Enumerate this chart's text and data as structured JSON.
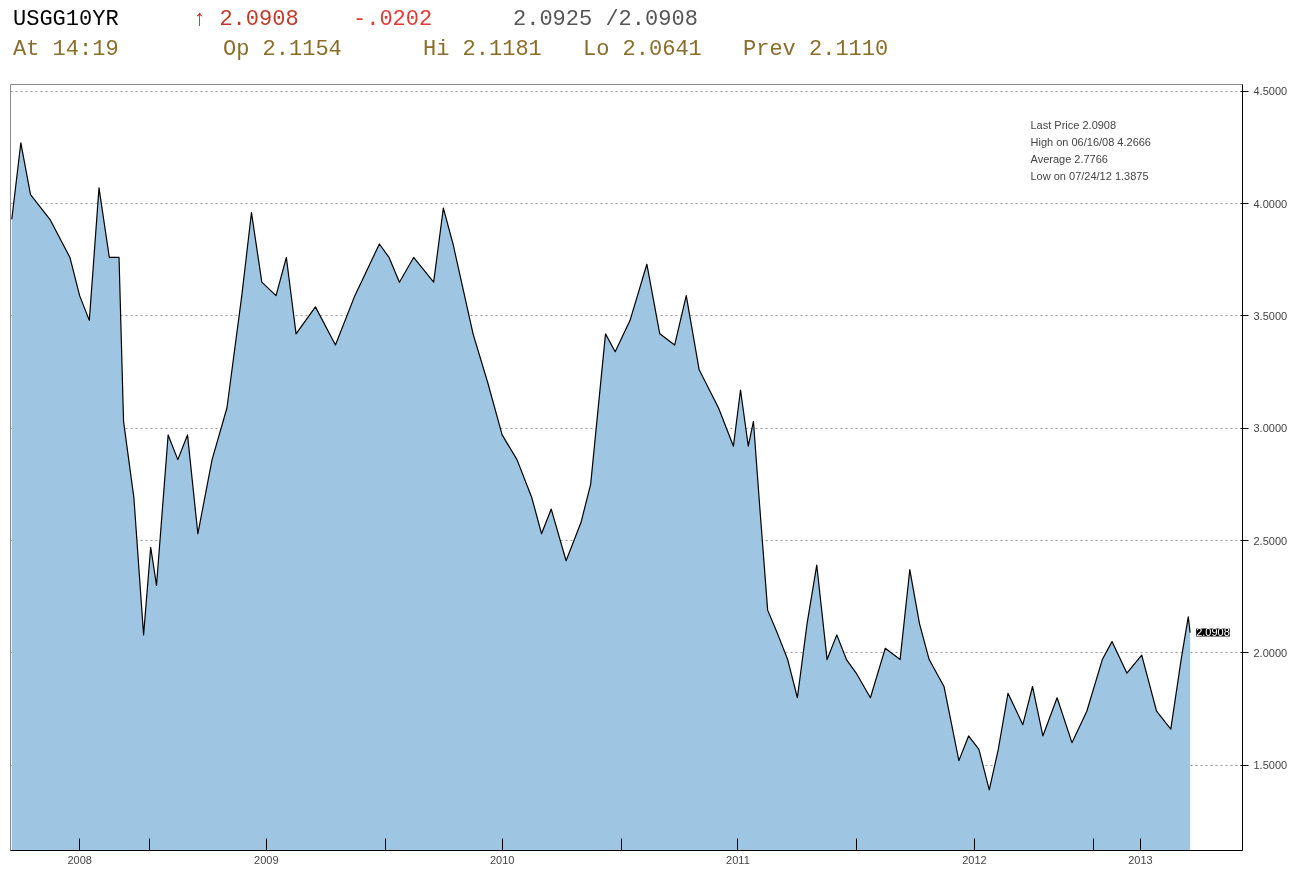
{
  "chart_data": {
    "type": "area",
    "title": "USGG10YR",
    "annotations": [
      "↑ 2.0908",
      "-.0202",
      "2.0925 /2.0908",
      "At 14:19",
      "Op 2.1154",
      "Hi 2.1181",
      "Lo 2.0641",
      "Prev 2.1110",
      "Last Price 2.0908",
      "High on 06/16/08 4.2666",
      "Average 2.7766",
      "Low on 07/24/12 1.3875",
      {
        "text": "2.0908",
        "x": "2013-05-31",
        "y": 2.0908
      }
    ],
    "x": [
      "2008-06-02",
      "2008-06-16",
      "2008-07-01",
      "2008-07-31",
      "2008-08-31",
      "2008-09-15",
      "2008-09-30",
      "2008-10-15",
      "2008-10-31",
      "2008-11-15",
      "2008-11-22",
      "2008-12-08",
      "2008-12-23",
      "2009-01-03",
      "2009-01-12",
      "2009-01-30",
      "2009-02-14",
      "2009-03-01",
      "2009-03-17",
      "2009-04-08",
      "2009-05-01",
      "2009-05-24",
      "2009-06-08",
      "2009-06-24",
      "2009-07-16",
      "2009-08-01",
      "2009-08-16",
      "2009-09-15",
      "2009-10-16",
      "2009-11-15",
      "2009-12-23",
      "2010-01-07",
      "2010-01-23",
      "2010-02-14",
      "2010-03-17",
      "2010-04-01",
      "2010-04-16",
      "2010-05-17",
      "2010-06-09",
      "2010-07-01",
      "2010-07-24",
      "2010-08-16",
      "2010-08-31",
      "2010-09-15",
      "2010-10-08",
      "2010-10-31",
      "2010-11-15",
      "2010-12-08",
      "2010-12-23",
      "2011-01-15",
      "2011-02-10",
      "2011-03-02",
      "2011-03-25",
      "2011-04-12",
      "2011-05-02",
      "2011-06-01",
      "2011-06-24",
      "2011-07-05",
      "2011-07-17",
      "2011-07-25",
      "2011-08-04",
      "2011-08-16",
      "2011-09-01",
      "2011-09-16",
      "2011-10-01",
      "2011-10-16",
      "2011-10-31",
      "2011-11-16",
      "2011-12-01",
      "2011-12-16",
      "2011-12-31",
      "2012-01-22",
      "2012-02-14",
      "2012-03-08",
      "2012-03-23",
      "2012-04-07",
      "2012-04-22",
      "2012-05-15",
      "2012-06-07",
      "2012-06-22",
      "2012-07-08",
      "2012-07-24",
      "2012-08-07",
      "2012-08-22",
      "2012-09-14",
      "2012-09-29",
      "2012-10-15",
      "2012-11-06",
      "2012-11-29",
      "2012-12-22",
      "2013-01-15",
      "2013-01-30",
      "2013-02-22",
      "2013-03-17",
      "2013-04-09",
      "2013-05-01",
      "2013-05-17",
      "2013-05-28",
      "2013-05-31"
    ],
    "series": [
      {
        "color": "#9ec6e2",
        "values": [
          3.93,
          4.27,
          4.04,
          3.93,
          3.76,
          3.59,
          3.48,
          4.07,
          3.76,
          3.76,
          3.03,
          2.69,
          2.08,
          2.47,
          2.3,
          2.97,
          2.86,
          2.97,
          2.53,
          2.86,
          3.09,
          3.59,
          3.96,
          3.65,
          3.59,
          3.76,
          3.42,
          3.54,
          3.37,
          3.59,
          3.82,
          3.76,
          3.65,
          3.76,
          3.65,
          3.98,
          3.82,
          3.42,
          3.2,
          2.97,
          2.86,
          2.69,
          2.53,
          2.64,
          2.41,
          2.58,
          2.75,
          3.42,
          3.34,
          3.48,
          3.73,
          3.42,
          3.37,
          3.59,
          3.26,
          3.09,
          2.92,
          3.17,
          2.92,
          3.03,
          2.64,
          2.19,
          2.08,
          1.97,
          1.8,
          2.13,
          2.39,
          1.97,
          2.08,
          1.97,
          1.91,
          1.8,
          2.02,
          1.97,
          2.37,
          2.13,
          1.97,
          1.85,
          1.52,
          1.63,
          1.57,
          1.39,
          1.57,
          1.82,
          1.68,
          1.85,
          1.63,
          1.8,
          1.6,
          1.74,
          1.97,
          2.05,
          1.91,
          1.99,
          1.74,
          1.66,
          1.97,
          2.16,
          2.09
        ]
      }
    ],
    "xlim": [
      "2008-05-31",
      "2013-08-20"
    ],
    "xticks": [
      {
        "value": "2008-09-15",
        "label": "2008"
      },
      {
        "value": "2009-01-01",
        "label": null
      },
      {
        "value": "2009-07-01",
        "label": "2009"
      },
      {
        "value": "2010-01-01",
        "label": null
      },
      {
        "value": "2010-07-01",
        "label": "2010"
      },
      {
        "value": "2011-01-01",
        "label": null
      },
      {
        "value": "2011-07-01",
        "label": "2011"
      },
      {
        "value": "2012-01-01",
        "label": null
      },
      {
        "value": "2012-07-01",
        "label": "2012"
      },
      {
        "value": "2013-01-01",
        "label": null
      },
      {
        "value": "2013-03-15",
        "label": "2013"
      }
    ],
    "ylim": [
      1.12,
      4.53
    ],
    "yticks": [
      {
        "value": 1.5,
        "label": "1.5000"
      },
      {
        "value": 2,
        "label": "2.0000"
      },
      {
        "value": 2.5,
        "label": "2.5000"
      },
      {
        "value": 3,
        "label": "3.0000"
      },
      {
        "value": 3.5,
        "label": "3.5000"
      },
      {
        "value": 4,
        "label": "4.0000"
      },
      {
        "value": 4.5,
        "label": "4.5000"
      }
    ],
    "grid": "y"
  }
}
